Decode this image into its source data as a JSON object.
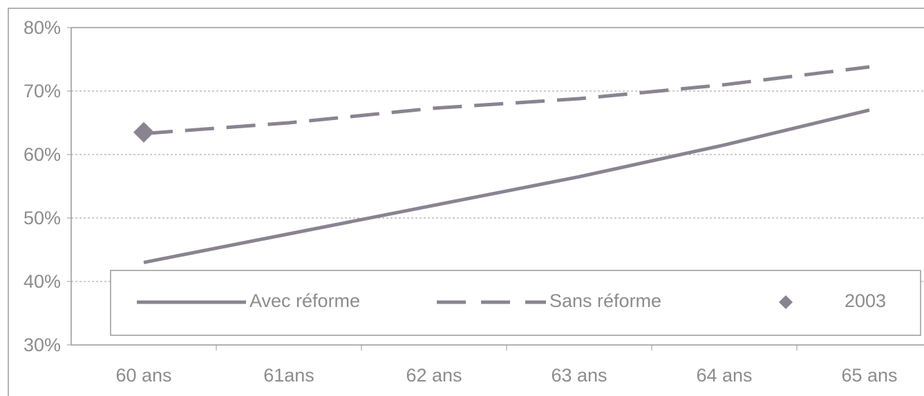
{
  "chart_data": {
    "type": "line",
    "categories": [
      "60 ans",
      "61ans",
      "62 ans",
      "63 ans",
      "64 ans",
      "65 ans"
    ],
    "series": [
      {
        "name": "Avec réforme",
        "color": "#8a8390",
        "style": "solid",
        "values": [
          43,
          47.5,
          52,
          56.5,
          61.5,
          67
        ]
      },
      {
        "name": "Sans réforme",
        "color": "#8a8390",
        "style": "dashed",
        "values": [
          63.3,
          65,
          67.3,
          68.8,
          71,
          73.8
        ]
      },
      {
        "name": "2003",
        "color": "#8a8390",
        "style": "marker",
        "values": [
          63.5,
          null,
          null,
          null,
          null,
          null
        ]
      }
    ],
    "ylim": [
      30,
      80
    ],
    "yticks": [
      {
        "value": 30,
        "label": "30%"
      },
      {
        "value": 40,
        "label": "40%"
      },
      {
        "value": 50,
        "label": "50%"
      },
      {
        "value": 60,
        "label": "60%"
      },
      {
        "value": 70,
        "label": "70%"
      },
      {
        "value": 80,
        "label": "80%"
      }
    ],
    "grid": true
  }
}
